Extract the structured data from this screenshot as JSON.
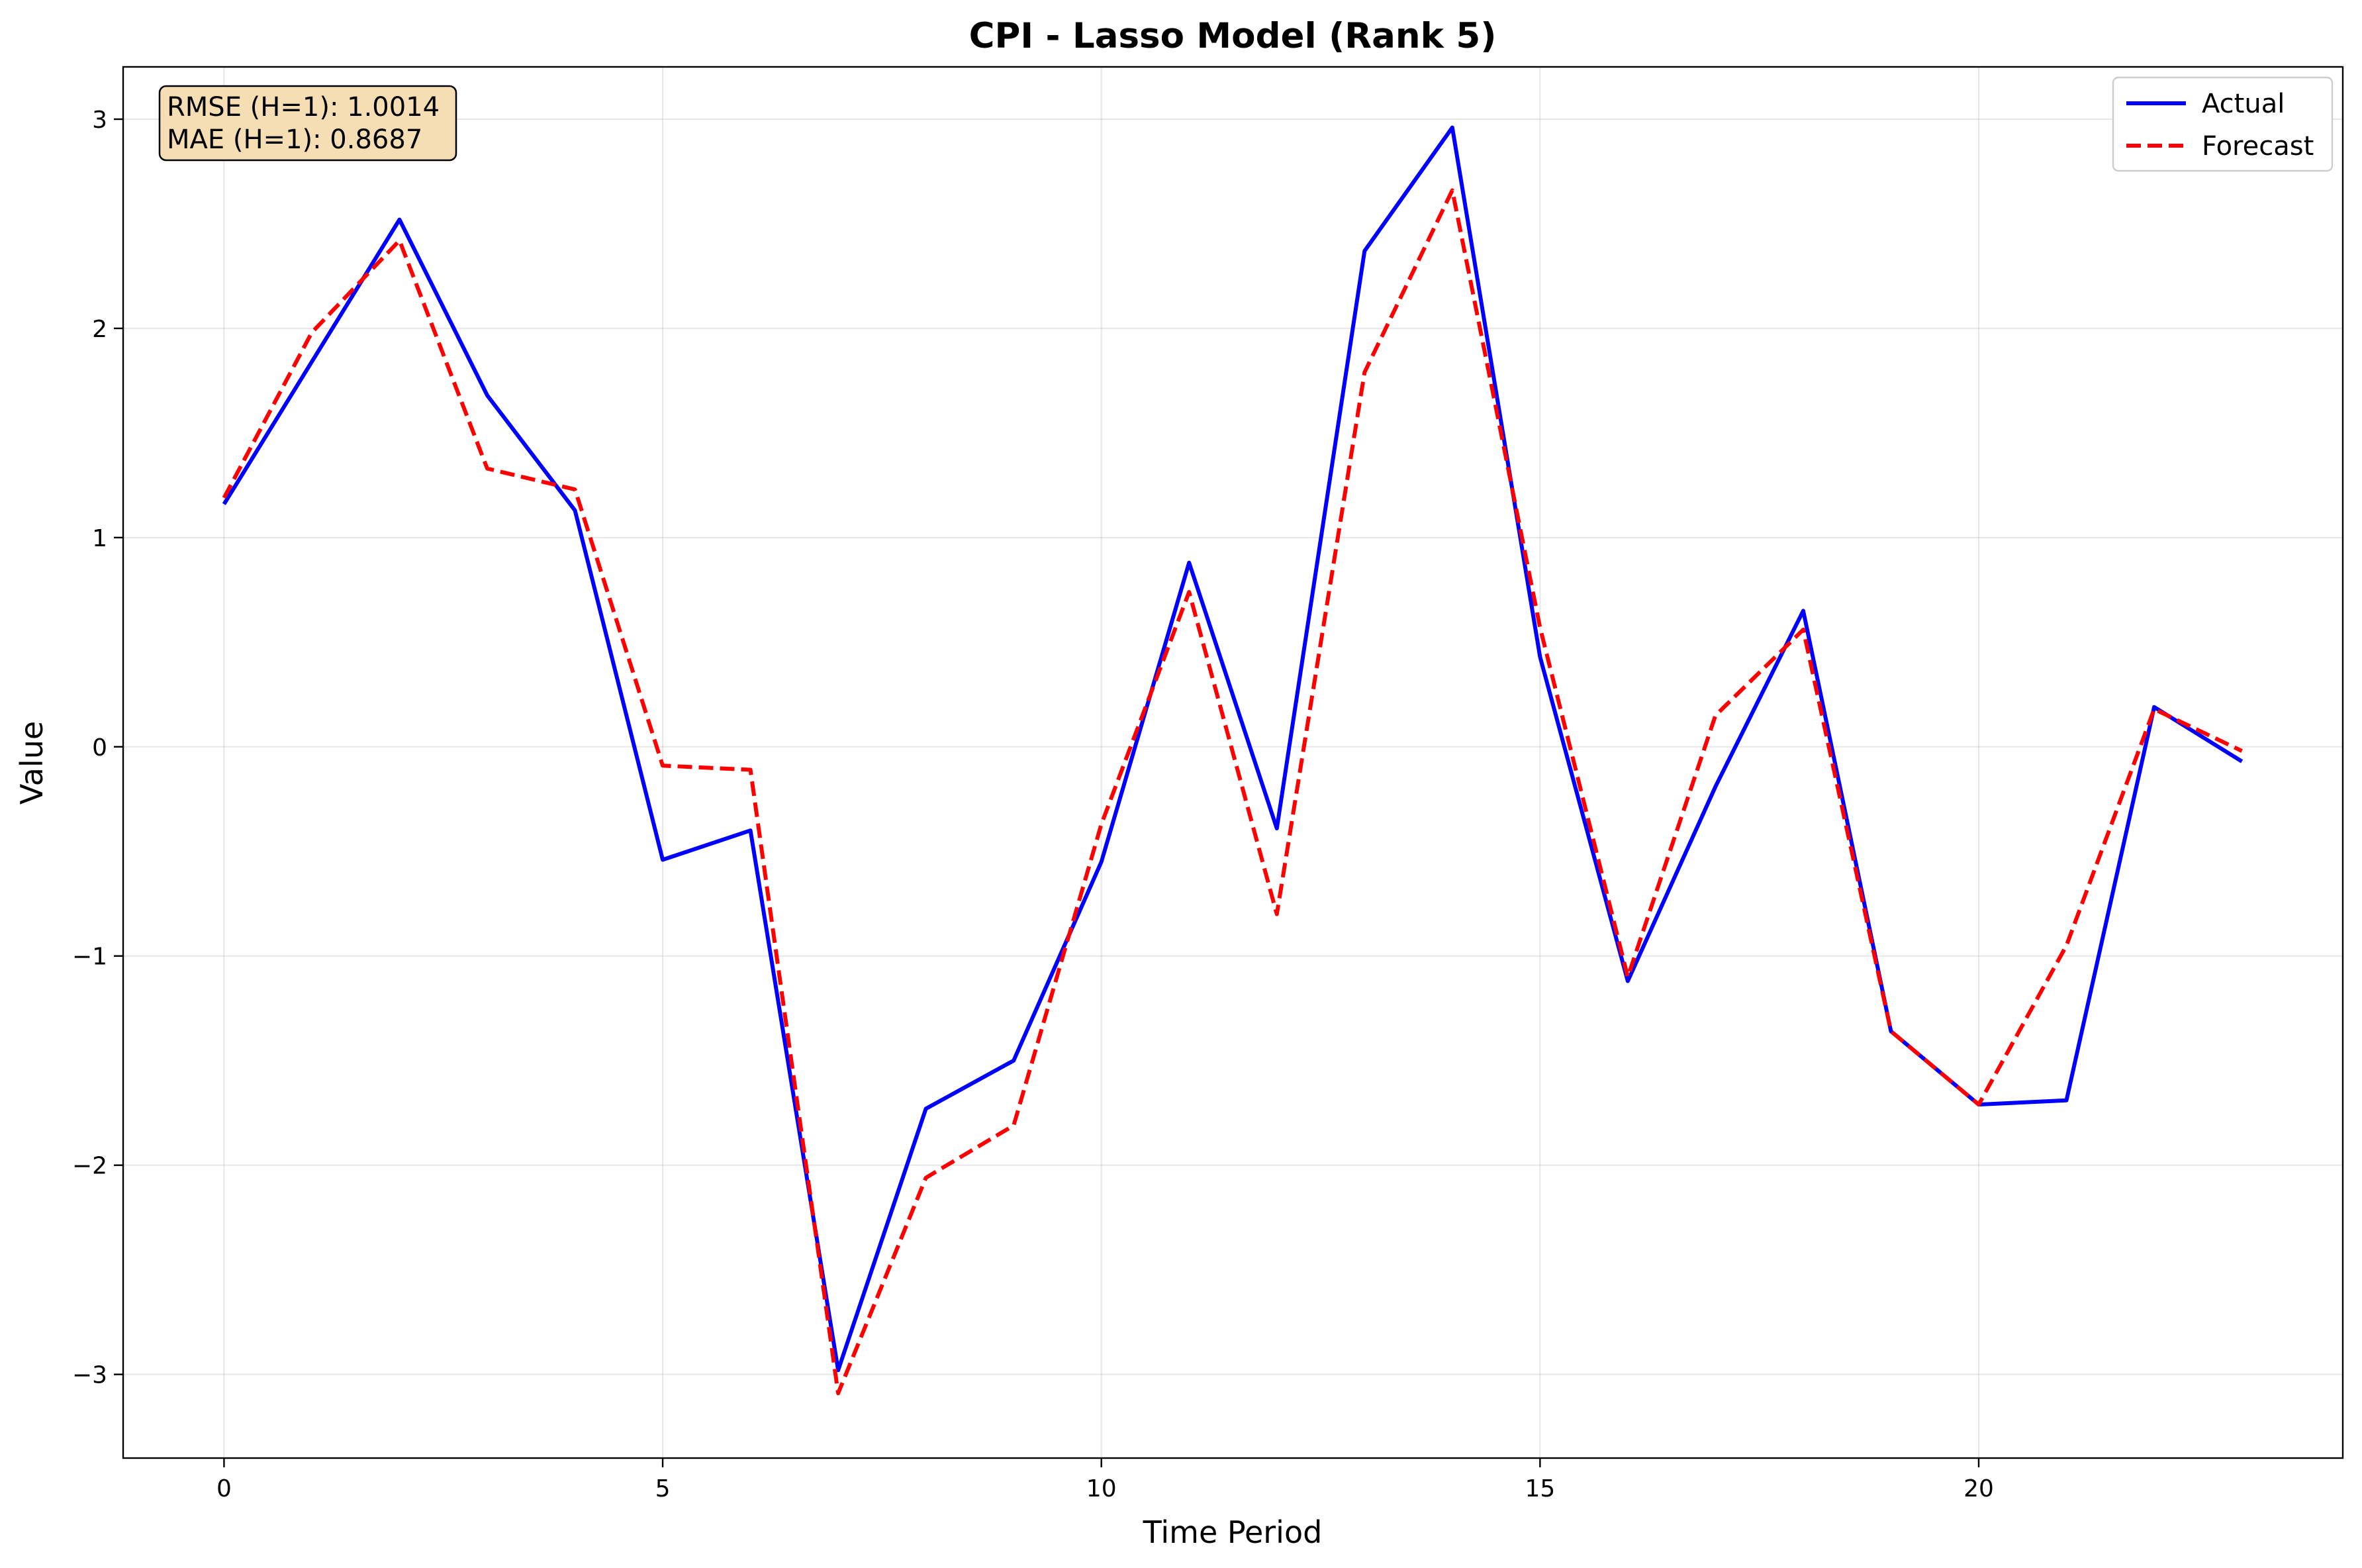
{
  "chart_data": {
    "type": "line",
    "title": "CPI - Lasso Model (Rank 5)",
    "xlabel": "Time Period",
    "ylabel": "Value",
    "xlim": [
      -1.15,
      24.15
    ],
    "ylim": [
      -3.4,
      3.25
    ],
    "x_ticks": [
      0,
      5,
      10,
      15,
      20
    ],
    "x_tick_labels": [
      "0",
      "5",
      "10",
      "15",
      "20"
    ],
    "y_ticks": [
      -3,
      -2,
      -1,
      0,
      1,
      2,
      3
    ],
    "y_tick_labels": [
      "−3",
      "−2",
      "−1",
      "0",
      "1",
      "2",
      "3"
    ],
    "grid": true,
    "legend_position": "top-right",
    "x": [
      0,
      1,
      2,
      3,
      4,
      5,
      6,
      7,
      8,
      9,
      10,
      11,
      12,
      13,
      14,
      15,
      16,
      17,
      18,
      19,
      20,
      21,
      22,
      23
    ],
    "series": [
      {
        "name": "Actual",
        "color": "#0000ff",
        "style": "solid",
        "values": [
          1.16,
          1.84,
          2.52,
          1.68,
          1.13,
          -0.54,
          -0.4,
          -2.98,
          -1.73,
          -1.5,
          -0.55,
          0.88,
          -0.39,
          2.37,
          2.96,
          0.43,
          -1.12,
          -0.19,
          0.65,
          -1.36,
          -1.71,
          -1.69,
          0.19,
          -0.07
        ]
      },
      {
        "name": "Forecast",
        "color": "#ff0000",
        "style": "dashed",
        "values": [
          1.19,
          1.98,
          2.42,
          1.33,
          1.23,
          -0.09,
          -0.11,
          -3.09,
          -2.06,
          -1.81,
          -0.37,
          0.74,
          -0.8,
          1.79,
          2.66,
          0.57,
          -1.1,
          0.15,
          0.56,
          -1.36,
          -1.71,
          -0.95,
          0.18,
          -0.02
        ]
      }
    ],
    "annotation": {
      "lines": [
        "RMSE (H=1): 1.0014",
        "MAE (H=1): 0.8687"
      ],
      "background": "#f5deb3"
    }
  }
}
